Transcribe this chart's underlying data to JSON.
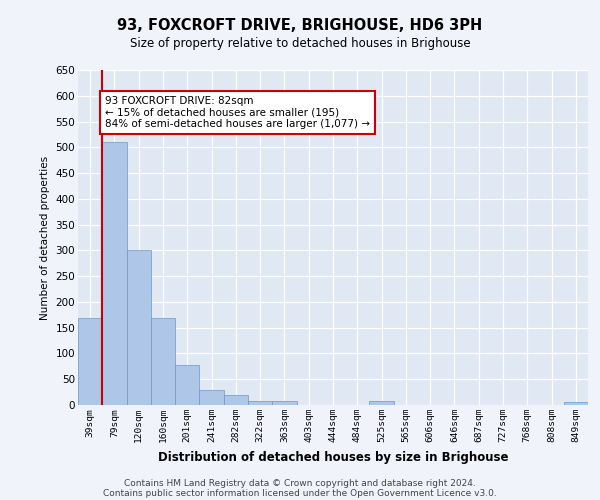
{
  "title_line1": "93, FOXCROFT DRIVE, BRIGHOUSE, HD6 3PH",
  "title_line2": "Size of property relative to detached houses in Brighouse",
  "xlabel": "Distribution of detached houses by size in Brighouse",
  "ylabel": "Number of detached properties",
  "categories": [
    "39sqm",
    "79sqm",
    "120sqm",
    "160sqm",
    "201sqm",
    "241sqm",
    "282sqm",
    "322sqm",
    "363sqm",
    "403sqm",
    "444sqm",
    "484sqm",
    "525sqm",
    "565sqm",
    "606sqm",
    "646sqm",
    "687sqm",
    "727sqm",
    "768sqm",
    "808sqm",
    "849sqm"
  ],
  "values": [
    168,
    510,
    300,
    168,
    78,
    30,
    20,
    8,
    8,
    0,
    0,
    0,
    8,
    0,
    0,
    0,
    0,
    0,
    0,
    0,
    5
  ],
  "bar_color": "#aec6e8",
  "bar_edge_color": "#6699cc",
  "highlight_line_color": "#cc0000",
  "annotation_text": "93 FOXCROFT DRIVE: 82sqm\n← 15% of detached houses are smaller (195)\n84% of semi-detached houses are larger (1,077) →",
  "annotation_box_color": "#cc0000",
  "annotation_bg": "#ffffff",
  "ylim": [
    0,
    650
  ],
  "yticks": [
    0,
    50,
    100,
    150,
    200,
    250,
    300,
    350,
    400,
    450,
    500,
    550,
    600,
    650
  ],
  "footer_line1": "Contains HM Land Registry data © Crown copyright and database right 2024.",
  "footer_line2": "Contains public sector information licensed under the Open Government Licence v3.0.",
  "background_color": "#f0f4fa",
  "plot_bg_color": "#e0e8f4"
}
